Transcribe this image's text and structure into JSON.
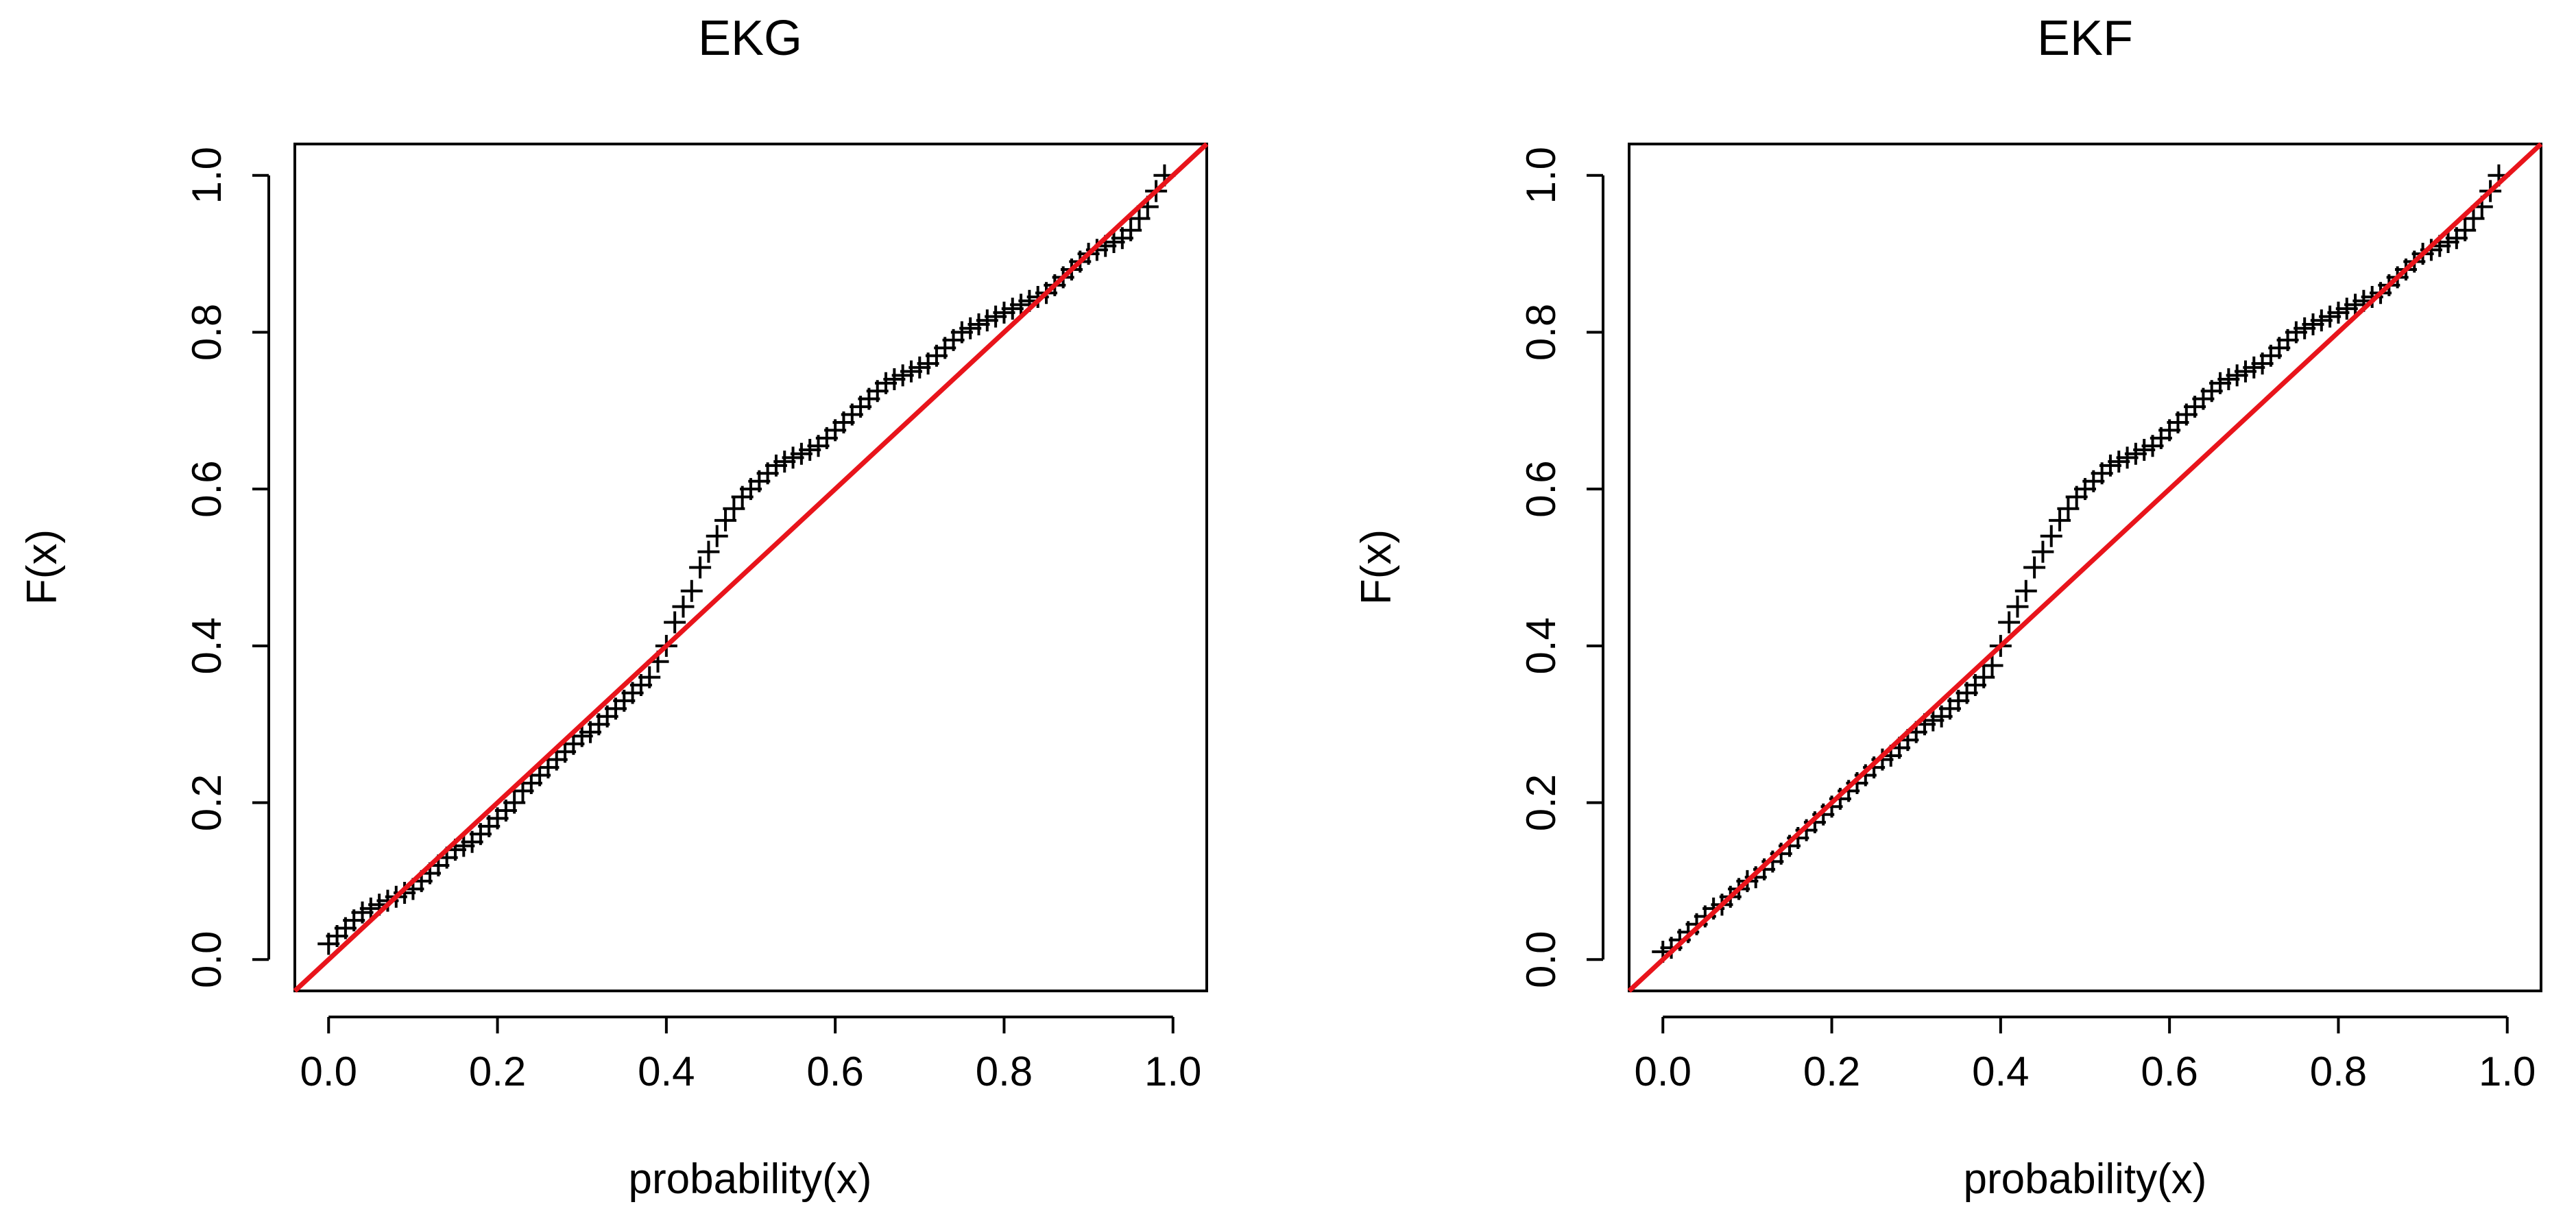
{
  "chart_data": [
    {
      "type": "scatter",
      "title": "EKG",
      "xlabel": "probability(x)",
      "ylabel": "F(x)",
      "xlim": [
        -0.04,
        1.04
      ],
      "ylim": [
        -0.04,
        1.04
      ],
      "xticks": [
        "0.0",
        "0.2",
        "0.4",
        "0.6",
        "0.8",
        "1.0"
      ],
      "yticks": [
        "0.0",
        "0.2",
        "0.4",
        "0.6",
        "0.8",
        "1.0"
      ],
      "marker": "+",
      "reference_line": {
        "from": [
          -0.04,
          -0.04
        ],
        "to": [
          1.04,
          1.04
        ],
        "color": "#e8141b"
      },
      "series": [
        {
          "name": "points",
          "color": "#000000",
          "x": [
            0.0,
            0.01,
            0.02,
            0.03,
            0.04,
            0.05,
            0.06,
            0.07,
            0.08,
            0.09,
            0.1,
            0.11,
            0.12,
            0.13,
            0.14,
            0.15,
            0.16,
            0.17,
            0.18,
            0.19,
            0.2,
            0.21,
            0.22,
            0.23,
            0.24,
            0.25,
            0.26,
            0.27,
            0.28,
            0.29,
            0.3,
            0.31,
            0.32,
            0.33,
            0.34,
            0.35,
            0.36,
            0.37,
            0.38,
            0.39,
            0.4,
            0.41,
            0.42,
            0.43,
            0.44,
            0.45,
            0.46,
            0.47,
            0.48,
            0.49,
            0.5,
            0.51,
            0.52,
            0.53,
            0.54,
            0.55,
            0.56,
            0.57,
            0.58,
            0.59,
            0.6,
            0.61,
            0.62,
            0.63,
            0.64,
            0.65,
            0.66,
            0.67,
            0.68,
            0.69,
            0.7,
            0.71,
            0.72,
            0.73,
            0.74,
            0.75,
            0.76,
            0.77,
            0.78,
            0.79,
            0.8,
            0.81,
            0.82,
            0.83,
            0.84,
            0.85,
            0.86,
            0.87,
            0.88,
            0.89,
            0.9,
            0.91,
            0.92,
            0.93,
            0.94,
            0.95,
            0.96,
            0.97,
            0.98,
            0.99
          ],
          "y": [
            0.02,
            0.03,
            0.04,
            0.05,
            0.06,
            0.065,
            0.07,
            0.075,
            0.08,
            0.085,
            0.09,
            0.1,
            0.11,
            0.12,
            0.13,
            0.14,
            0.145,
            0.15,
            0.16,
            0.17,
            0.18,
            0.19,
            0.2,
            0.215,
            0.225,
            0.235,
            0.245,
            0.255,
            0.265,
            0.275,
            0.285,
            0.29,
            0.3,
            0.31,
            0.32,
            0.33,
            0.34,
            0.35,
            0.36,
            0.38,
            0.4,
            0.43,
            0.45,
            0.47,
            0.5,
            0.52,
            0.54,
            0.56,
            0.575,
            0.59,
            0.6,
            0.61,
            0.62,
            0.63,
            0.635,
            0.64,
            0.645,
            0.65,
            0.655,
            0.665,
            0.675,
            0.685,
            0.695,
            0.705,
            0.715,
            0.725,
            0.735,
            0.74,
            0.745,
            0.75,
            0.755,
            0.76,
            0.77,
            0.78,
            0.79,
            0.8,
            0.805,
            0.81,
            0.815,
            0.82,
            0.825,
            0.83,
            0.835,
            0.84,
            0.845,
            0.85,
            0.86,
            0.87,
            0.88,
            0.89,
            0.9,
            0.905,
            0.91,
            0.915,
            0.92,
            0.93,
            0.945,
            0.96,
            0.98,
            1.0
          ]
        }
      ]
    },
    {
      "type": "scatter",
      "title": "EKF",
      "xlabel": "probability(x)",
      "ylabel": "F(x)",
      "xlim": [
        -0.04,
        1.04
      ],
      "ylim": [
        -0.04,
        1.04
      ],
      "xticks": [
        "0.0",
        "0.2",
        "0.4",
        "0.6",
        "0.8",
        "1.0"
      ],
      "yticks": [
        "0.0",
        "0.2",
        "0.4",
        "0.6",
        "0.8",
        "1.0"
      ],
      "marker": "+",
      "reference_line": {
        "from": [
          -0.04,
          -0.04
        ],
        "to": [
          1.04,
          1.04
        ],
        "color": "#e8141b"
      },
      "series": [
        {
          "name": "points",
          "color": "#000000",
          "x": [
            0.0,
            0.01,
            0.02,
            0.03,
            0.04,
            0.05,
            0.06,
            0.07,
            0.08,
            0.09,
            0.1,
            0.11,
            0.12,
            0.13,
            0.14,
            0.15,
            0.16,
            0.17,
            0.18,
            0.19,
            0.2,
            0.21,
            0.22,
            0.23,
            0.24,
            0.25,
            0.26,
            0.27,
            0.28,
            0.29,
            0.3,
            0.31,
            0.32,
            0.33,
            0.34,
            0.35,
            0.36,
            0.37,
            0.38,
            0.39,
            0.4,
            0.41,
            0.42,
            0.43,
            0.44,
            0.45,
            0.46,
            0.47,
            0.48,
            0.49,
            0.5,
            0.51,
            0.52,
            0.53,
            0.54,
            0.55,
            0.56,
            0.57,
            0.58,
            0.59,
            0.6,
            0.61,
            0.62,
            0.63,
            0.64,
            0.65,
            0.66,
            0.67,
            0.68,
            0.69,
            0.7,
            0.71,
            0.72,
            0.73,
            0.74,
            0.75,
            0.76,
            0.77,
            0.78,
            0.79,
            0.8,
            0.81,
            0.82,
            0.83,
            0.84,
            0.85,
            0.86,
            0.87,
            0.88,
            0.89,
            0.9,
            0.91,
            0.92,
            0.93,
            0.94,
            0.95,
            0.96,
            0.97,
            0.98,
            0.99
          ],
          "y": [
            0.01,
            0.015,
            0.025,
            0.035,
            0.045,
            0.055,
            0.065,
            0.07,
            0.08,
            0.09,
            0.1,
            0.105,
            0.115,
            0.125,
            0.135,
            0.145,
            0.155,
            0.165,
            0.175,
            0.185,
            0.195,
            0.205,
            0.215,
            0.225,
            0.235,
            0.245,
            0.255,
            0.26,
            0.27,
            0.28,
            0.29,
            0.3,
            0.305,
            0.31,
            0.32,
            0.33,
            0.34,
            0.35,
            0.36,
            0.375,
            0.4,
            0.43,
            0.45,
            0.47,
            0.5,
            0.52,
            0.54,
            0.56,
            0.575,
            0.59,
            0.6,
            0.61,
            0.62,
            0.63,
            0.635,
            0.64,
            0.645,
            0.65,
            0.655,
            0.665,
            0.675,
            0.685,
            0.695,
            0.705,
            0.715,
            0.725,
            0.735,
            0.74,
            0.745,
            0.75,
            0.755,
            0.76,
            0.77,
            0.78,
            0.79,
            0.8,
            0.805,
            0.81,
            0.815,
            0.82,
            0.825,
            0.83,
            0.835,
            0.84,
            0.845,
            0.85,
            0.86,
            0.87,
            0.88,
            0.89,
            0.9,
            0.905,
            0.91,
            0.915,
            0.92,
            0.93,
            0.945,
            0.96,
            0.98,
            1.0
          ]
        }
      ]
    }
  ]
}
